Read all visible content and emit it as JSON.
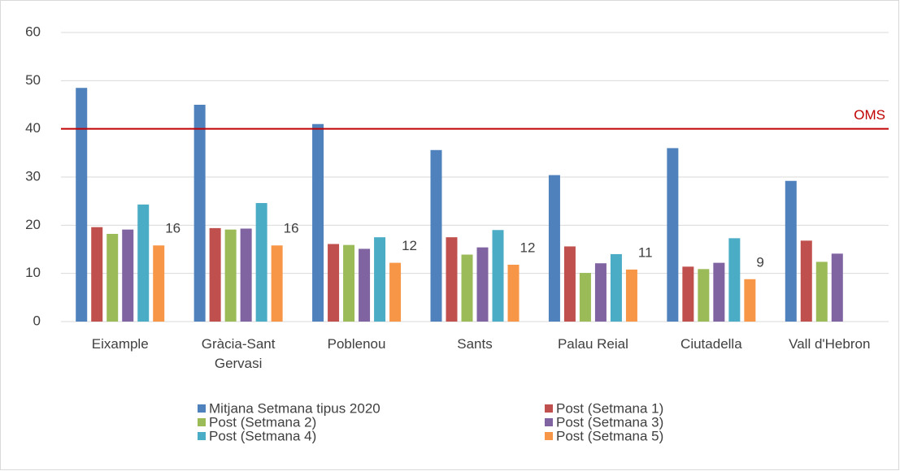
{
  "chart_data": {
    "type": "bar",
    "categories": [
      "Eixample",
      "Gràcia-Sant Gervasi",
      "Poblenou",
      "Sants",
      "Palau Reial",
      "Ciutadella",
      "Vall d'Hebron"
    ],
    "series": [
      {
        "name": "Mitjana Setmana tipus 2020",
        "color": "#4f81bd",
        "values": [
          48.5,
          45,
          41,
          35.6,
          30.4,
          36,
          29.2
        ]
      },
      {
        "name": "Post (Setmana 1)",
        "color": "#c0504d",
        "values": [
          19.6,
          19.4,
          16.1,
          17.5,
          15.6,
          11.4,
          16.8
        ]
      },
      {
        "name": "Post (Setmana 2)",
        "color": "#9bbb59",
        "values": [
          18.2,
          19.1,
          15.9,
          13.9,
          10.1,
          10.9,
          12.4
        ]
      },
      {
        "name": "Post (Setmana 3)",
        "color": "#8064a2",
        "values": [
          19.1,
          19.3,
          15.1,
          15.4,
          12.1,
          12.2,
          14.1
        ]
      },
      {
        "name": "Post (Setmana 4)",
        "color": "#4bacc6",
        "values": [
          24.3,
          24.6,
          17.5,
          19,
          14,
          17.3,
          null
        ]
      },
      {
        "name": "Post (Setmana 5)",
        "color": "#f79646",
        "values": [
          15.8,
          15.8,
          12.2,
          11.8,
          10.8,
          8.8,
          null
        ],
        "value_labels": [
          "16",
          "16",
          "12",
          "12",
          "11",
          "9",
          null
        ]
      }
    ],
    "reference_line": {
      "value": 40,
      "label": "OMS",
      "color": "#c00000"
    },
    "ylim": [
      0,
      60
    ],
    "yticks": [
      0,
      10,
      20,
      30,
      40,
      50,
      60
    ],
    "grid": true,
    "legend": "bottom"
  }
}
